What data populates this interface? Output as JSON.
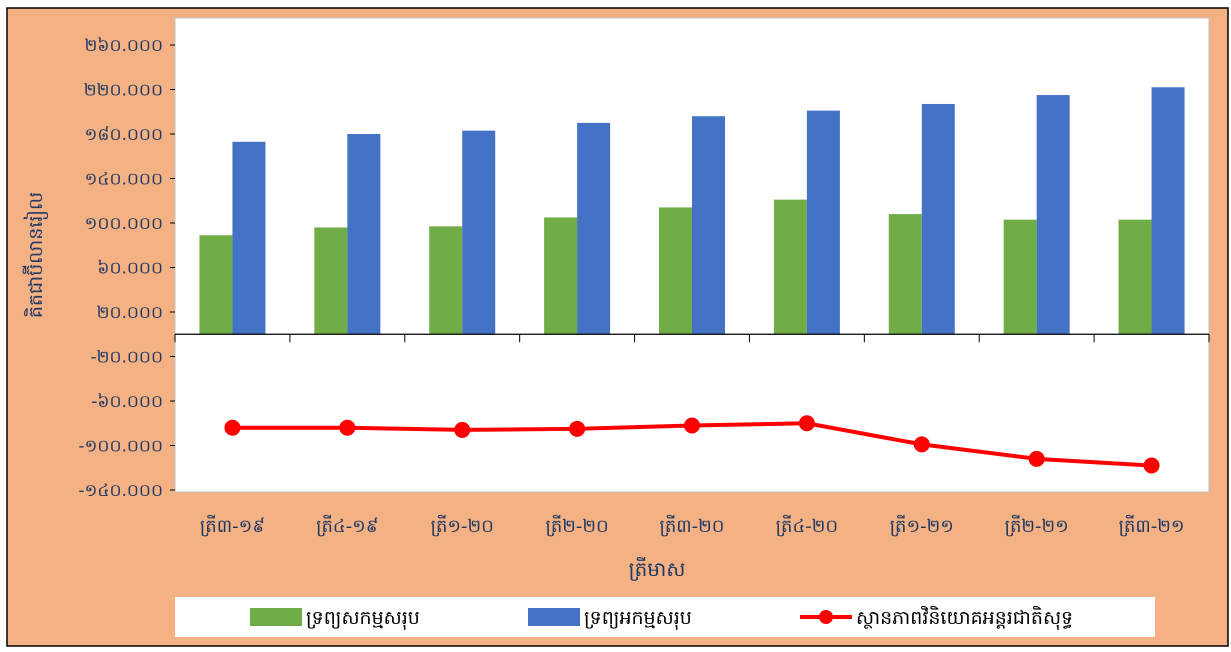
{
  "colors": {
    "background": "#F4B183",
    "plot_area": "#FFFFFF",
    "assets": "#70AD47",
    "liabilities": "#4472C4",
    "net_position": "#FF0000",
    "axis_text": "#1F3864",
    "title_text": "#0070C0"
  },
  "chart_data": {
    "type": "bar",
    "title": "",
    "xlabel": "ត្រីមាស",
    "ylabel": "គិតជាប៊ីលានរៀល",
    "ylim": [
      -140000,
      260000
    ],
    "categories": [
      "ត្រី៣-១៩",
      "ត្រី៤-១៩",
      "ត្រី១-២០",
      "ត្រី២-២០",
      "ត្រី៣-២០",
      "ត្រី៤-២០",
      "ត្រី១-២១",
      "ត្រី២-២១",
      "ត្រី៣-២១"
    ],
    "yticks": [
      {
        "value": 260000,
        "label": "២៦០.០០០"
      },
      {
        "value": 220000,
        "label": "២២០.០០០"
      },
      {
        "value": 180000,
        "label": "១៨០.០០០"
      },
      {
        "value": 140000,
        "label": "១៤០.០០០"
      },
      {
        "value": 100000,
        "label": "១០០.០០០"
      },
      {
        "value": 60000,
        "label": "៦០.០០០"
      },
      {
        "value": 20000,
        "label": "២០.០០០"
      },
      {
        "value": -20000,
        "label": "-២០.០០០"
      },
      {
        "value": -60000,
        "label": "-៦០.០០០"
      },
      {
        "value": -100000,
        "label": "-១០០.០០០"
      },
      {
        "value": -140000,
        "label": "-១៤០.០០០"
      }
    ],
    "series": [
      {
        "name": "ទ្រព្យសកម្មសរុប",
        "type": "bar",
        "values": [
          89000,
          96000,
          97000,
          105000,
          114000,
          121000,
          108000,
          103000,
          103000
        ]
      },
      {
        "name": "ទ្រព្យអកម្មសរុប",
        "type": "bar",
        "values": [
          173000,
          180000,
          183000,
          190000,
          196000,
          201000,
          207000,
          215000,
          222000
        ]
      },
      {
        "name": "ស្ថានភាពវិនិយោគអន្តរជាតិសុទ្ធ",
        "type": "line",
        "values": [
          -84000,
          -84000,
          -86000,
          -85000,
          -82000,
          -80000,
          -99000,
          -112000,
          -118000
        ]
      }
    ],
    "legend": "bottom"
  }
}
